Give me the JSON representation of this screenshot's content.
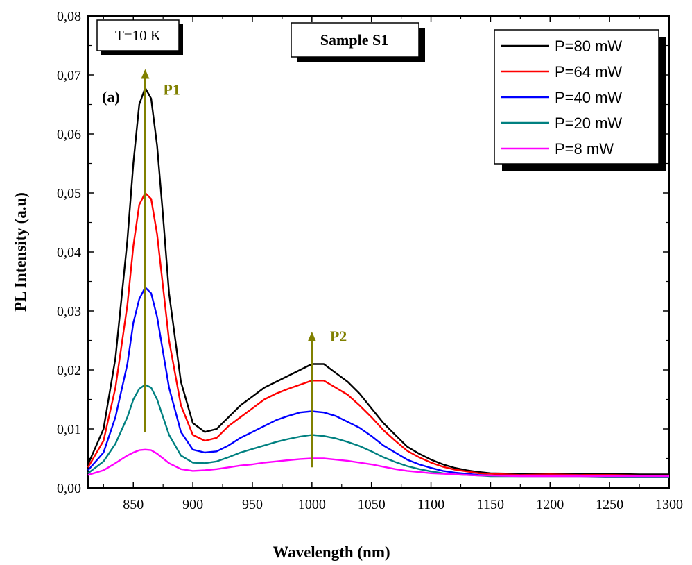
{
  "chart_data": {
    "type": "line",
    "xlabel": "Wavelength (nm)",
    "ylabel": "PL Intensity (a.u)",
    "xlim": [
      812,
      1300
    ],
    "ylim": [
      0,
      0.08
    ],
    "x_ticks": [
      850,
      900,
      950,
      1000,
      1050,
      1100,
      1150,
      1200,
      1250,
      1300
    ],
    "x_tick_labels": [
      "850",
      "900",
      "950",
      "1000",
      "1050",
      "1100",
      "1150",
      "1200",
      "1250",
      "1300"
    ],
    "y_ticks": [
      0,
      0.01,
      0.02,
      0.03,
      0.04,
      0.05,
      0.06,
      0.07,
      0.08
    ],
    "y_tick_labels": [
      "0,00",
      "0,01",
      "0,02",
      "0,03",
      "0,04",
      "0,05",
      "0,06",
      "0,07",
      "0,08"
    ],
    "grid": false,
    "legend_position": "top-right",
    "series": [
      {
        "name": "P=80 mW",
        "color": "#000000",
        "x": [
          812,
          825,
          835,
          845,
          850,
          855,
          860,
          865,
          870,
          875,
          880,
          890,
          900,
          910,
          920,
          930,
          940,
          950,
          960,
          970,
          980,
          990,
          1000,
          1010,
          1020,
          1030,
          1040,
          1050,
          1060,
          1070,
          1080,
          1090,
          1100,
          1110,
          1120,
          1130,
          1140,
          1150,
          1175,
          1200,
          1225,
          1250,
          1275,
          1300
        ],
        "y": [
          0.004,
          0.01,
          0.022,
          0.042,
          0.055,
          0.065,
          0.0678,
          0.066,
          0.058,
          0.046,
          0.033,
          0.018,
          0.011,
          0.0095,
          0.01,
          0.012,
          0.014,
          0.0155,
          0.017,
          0.018,
          0.019,
          0.02,
          0.021,
          0.021,
          0.0195,
          0.018,
          0.016,
          0.0135,
          0.011,
          0.009,
          0.007,
          0.0058,
          0.0048,
          0.004,
          0.0034,
          0.003,
          0.0027,
          0.0025,
          0.0024,
          0.0024,
          0.0024,
          0.0024,
          0.0023,
          0.0023
        ]
      },
      {
        "name": "P=64 mW",
        "color": "#ff0000",
        "x": [
          812,
          825,
          835,
          845,
          850,
          855,
          860,
          865,
          870,
          875,
          880,
          890,
          900,
          910,
          920,
          930,
          940,
          950,
          960,
          970,
          980,
          990,
          1000,
          1010,
          1020,
          1030,
          1040,
          1050,
          1060,
          1070,
          1080,
          1090,
          1100,
          1110,
          1120,
          1130,
          1140,
          1150,
          1175,
          1200,
          1225,
          1250,
          1275,
          1300
        ],
        "y": [
          0.0035,
          0.008,
          0.017,
          0.031,
          0.041,
          0.048,
          0.05,
          0.049,
          0.043,
          0.034,
          0.025,
          0.014,
          0.009,
          0.008,
          0.0085,
          0.0105,
          0.012,
          0.0135,
          0.015,
          0.016,
          0.0168,
          0.0175,
          0.0182,
          0.0182,
          0.017,
          0.0158,
          0.014,
          0.012,
          0.0098,
          0.008,
          0.0063,
          0.0052,
          0.0043,
          0.0036,
          0.0031,
          0.0028,
          0.0025,
          0.0024,
          0.0022,
          0.0023,
          0.0022,
          0.0022,
          0.0021,
          0.0021
        ]
      },
      {
        "name": "P=40 mW",
        "color": "#0000ff",
        "x": [
          812,
          825,
          835,
          845,
          850,
          855,
          860,
          865,
          870,
          875,
          880,
          890,
          900,
          910,
          920,
          930,
          940,
          950,
          960,
          970,
          980,
          990,
          1000,
          1010,
          1020,
          1030,
          1040,
          1050,
          1060,
          1070,
          1080,
          1090,
          1100,
          1110,
          1120,
          1130,
          1140,
          1150,
          1175,
          1200,
          1225,
          1250,
          1275,
          1300
        ],
        "y": [
          0.003,
          0.006,
          0.012,
          0.021,
          0.028,
          0.032,
          0.034,
          0.033,
          0.029,
          0.023,
          0.017,
          0.0095,
          0.0065,
          0.006,
          0.0062,
          0.0072,
          0.0085,
          0.0095,
          0.0105,
          0.0115,
          0.0122,
          0.0128,
          0.013,
          0.0128,
          0.0122,
          0.0112,
          0.0102,
          0.0088,
          0.0072,
          0.006,
          0.0048,
          0.004,
          0.0034,
          0.0029,
          0.0026,
          0.0024,
          0.0022,
          0.0021,
          0.0021,
          0.0021,
          0.0021,
          0.002,
          0.002,
          0.002
        ]
      },
      {
        "name": "P=20 mW",
        "color": "#008080",
        "x": [
          812,
          825,
          835,
          845,
          850,
          855,
          860,
          865,
          870,
          875,
          880,
          890,
          900,
          910,
          920,
          930,
          940,
          950,
          960,
          970,
          980,
          990,
          1000,
          1010,
          1020,
          1030,
          1040,
          1050,
          1060,
          1070,
          1080,
          1090,
          1100,
          1110,
          1120,
          1130,
          1140,
          1150,
          1175,
          1200,
          1225,
          1250,
          1275,
          1300
        ],
        "y": [
          0.0025,
          0.0045,
          0.0075,
          0.012,
          0.015,
          0.0168,
          0.0175,
          0.017,
          0.015,
          0.012,
          0.009,
          0.0055,
          0.0043,
          0.0042,
          0.0045,
          0.0052,
          0.006,
          0.0066,
          0.0072,
          0.0078,
          0.0083,
          0.0087,
          0.009,
          0.0088,
          0.0084,
          0.0078,
          0.0071,
          0.0062,
          0.0052,
          0.0044,
          0.0037,
          0.0032,
          0.0028,
          0.0025,
          0.0023,
          0.0022,
          0.0021,
          0.002,
          0.002,
          0.002,
          0.002,
          0.0019,
          0.0019,
          0.0019
        ]
      },
      {
        "name": "P=8 mW",
        "color": "#ff00ff",
        "x": [
          812,
          825,
          835,
          845,
          850,
          855,
          860,
          865,
          870,
          875,
          880,
          890,
          900,
          910,
          920,
          930,
          940,
          950,
          960,
          970,
          980,
          990,
          1000,
          1010,
          1020,
          1030,
          1040,
          1050,
          1060,
          1070,
          1080,
          1090,
          1100,
          1110,
          1120,
          1130,
          1140,
          1150,
          1175,
          1200,
          1225,
          1250,
          1275,
          1300
        ],
        "y": [
          0.0022,
          0.003,
          0.0042,
          0.0055,
          0.006,
          0.0064,
          0.0065,
          0.0064,
          0.0058,
          0.005,
          0.0042,
          0.0032,
          0.0029,
          0.003,
          0.0032,
          0.0035,
          0.0038,
          0.004,
          0.0043,
          0.0045,
          0.0047,
          0.0049,
          0.005,
          0.005,
          0.0048,
          0.0046,
          0.0043,
          0.004,
          0.0036,
          0.0032,
          0.0029,
          0.0027,
          0.0025,
          0.0024,
          0.0023,
          0.0022,
          0.0021,
          0.0021,
          0.002,
          0.002,
          0.002,
          0.002,
          0.002,
          0.002
        ]
      }
    ],
    "annotations": {
      "temperature": "T=10 K",
      "sample": "Sample S1",
      "panel": "(a)",
      "peaks": [
        {
          "label": "P1",
          "x": 860,
          "y_from": 0.0095,
          "y_to": 0.071,
          "color": "#808000"
        },
        {
          "label": "P2",
          "x": 1000,
          "y_from": 0.0035,
          "y_to": 0.0265,
          "color": "#808000"
        }
      ]
    }
  }
}
